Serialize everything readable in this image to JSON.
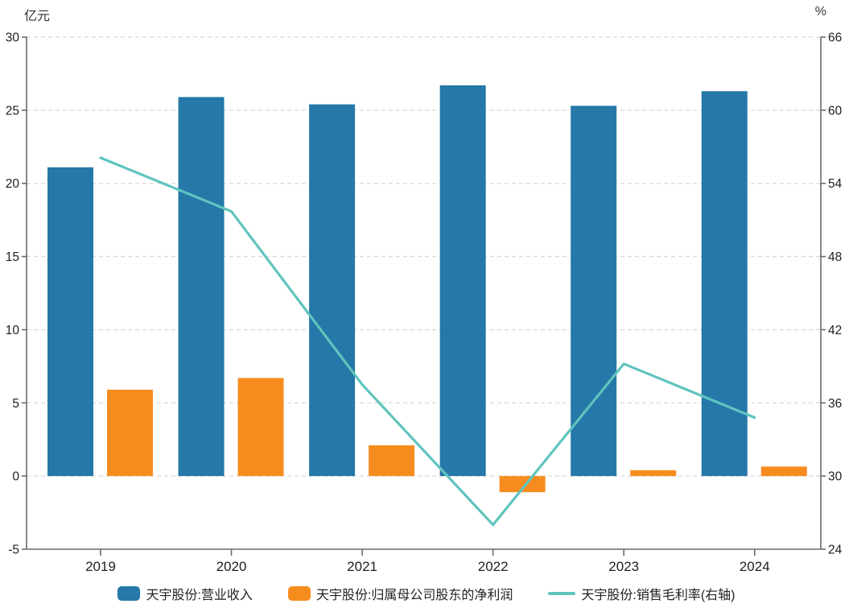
{
  "chart_data": {
    "type": "bar",
    "combo": "bar+line dual-axis",
    "title": "",
    "categories": [
      "2019",
      "2020",
      "2021",
      "2022",
      "2023",
      "2024"
    ],
    "series": [
      {
        "name": "天宇股份:营业收入",
        "type": "bar",
        "axis": "left",
        "color": "#2578a8",
        "values": [
          21.1,
          25.9,
          25.4,
          26.7,
          25.3,
          26.3
        ]
      },
      {
        "name": "天宇股份:归属母公司股东的净利润",
        "type": "bar",
        "axis": "left",
        "color": "#f78c1e",
        "values": [
          5.9,
          6.7,
          2.1,
          -1.1,
          0.4,
          0.65
        ]
      },
      {
        "name": "天宇股份:销售毛利率(右轴)",
        "type": "line",
        "axis": "right",
        "color": "#5fc4be",
        "values": [
          56.1,
          51.7,
          37.5,
          26.0,
          39.2,
          34.8
        ]
      }
    ],
    "left_axis": {
      "unit": "亿元",
      "min": -5,
      "max": 30,
      "ticks": [
        30,
        25,
        20,
        15,
        10,
        5,
        0,
        -5
      ]
    },
    "right_axis": {
      "unit": "%",
      "min": 24,
      "max": 66,
      "ticks": [
        66,
        60,
        54,
        48,
        42,
        36,
        30,
        24
      ]
    },
    "grid": "horizontal dashed lines at left-axis ticks",
    "legend_position": "bottom"
  }
}
